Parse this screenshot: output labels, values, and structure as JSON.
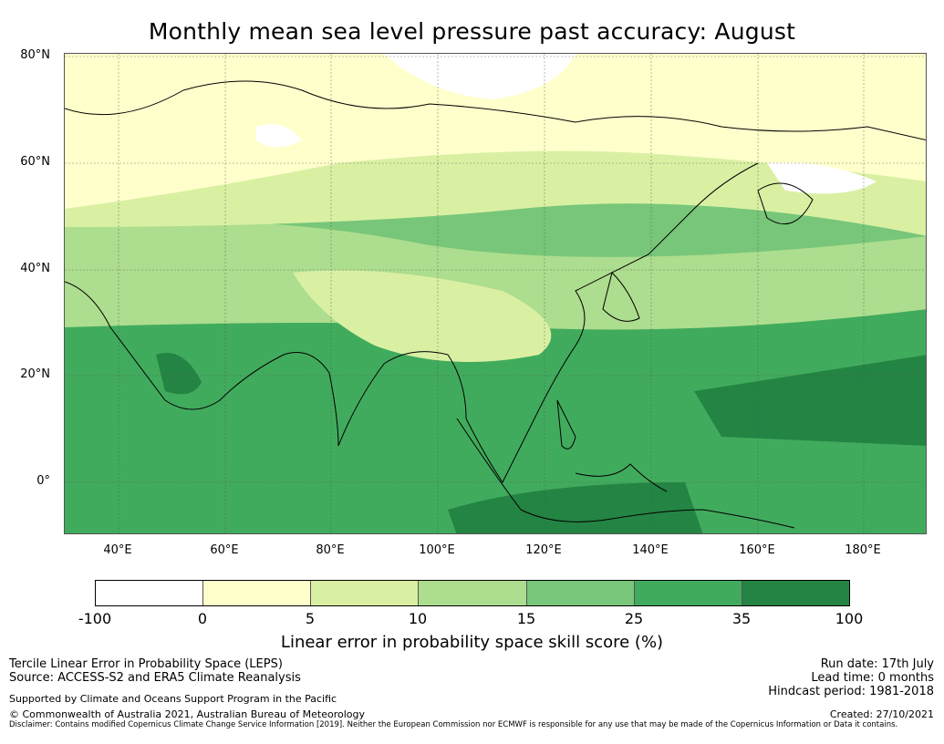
{
  "title": "Monthly mean sea level pressure past accuracy: August",
  "map": {
    "lat_labels": [
      "80°N",
      "60°N",
      "40°N",
      "20°N",
      "0°"
    ],
    "lon_labels": [
      "40°E",
      "60°E",
      "80°E",
      "100°E",
      "120°E",
      "140°E",
      "160°E",
      "180°E"
    ],
    "lon_range": [
      30,
      192
    ],
    "lat_range": [
      -10,
      80
    ],
    "gridlines": true
  },
  "colorbar": {
    "ticks": [
      "-100",
      "0",
      "5",
      "10",
      "15",
      "25",
      "35",
      "100"
    ],
    "colors": [
      "#ffffff",
      "#ffffcc",
      "#d9f0a3",
      "#addd8e",
      "#78c679",
      "#41ab5d",
      "#238443"
    ],
    "label": "Linear error in probability space skill score (%)"
  },
  "footer": {
    "method": "Tercile Linear Error in Probability Space (LEPS)",
    "source": "Source: ACCESS-S2 and ERA5 Climate Reanalysis",
    "support": "Supported by Climate and Oceans Support Program in the Pacific",
    "copyright": "© Commonwealth of Australia 2021, Australian Bureau of Meteorology",
    "disclaimer": "Disclaimer: Contains modified Copernicus Climate Change Service Information [2019]. Neither the European Commission nor ECMWF is responsible for any use that may be made of the Copernicus Information or Data it contains.",
    "run_date": "Run date: 17th July",
    "lead_time": "Lead time: 0 months",
    "hindcast": "Hindcast period: 1981-2018",
    "created": "Created: 27/10/2021"
  }
}
